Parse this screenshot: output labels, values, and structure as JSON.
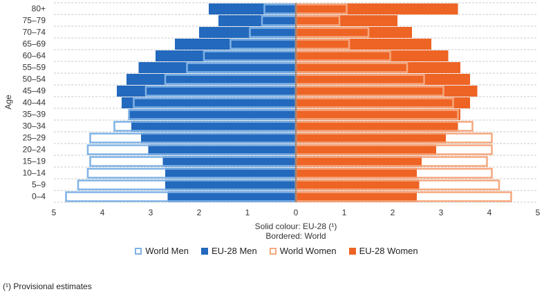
{
  "chart_data": {
    "type": "bar",
    "orientation": "horizontal",
    "layout": "population-pyramid",
    "categories": [
      "0–4",
      "5–9",
      "10–14",
      "15–19",
      "20–24",
      "25–29",
      "30–34",
      "35–39",
      "40–44",
      "45–49",
      "50–54",
      "55–59",
      "60–64",
      "65–69",
      "70–74",
      "75–79",
      "80+"
    ],
    "series": [
      {
        "name": "World Men",
        "side": "left",
        "style": "bordered",
        "color": "#7fb2e5",
        "values": [
          4.75,
          4.5,
          4.3,
          4.25,
          4.3,
          4.25,
          3.75,
          3.45,
          3.35,
          3.1,
          2.7,
          2.25,
          1.9,
          1.35,
          0.95,
          0.7,
          0.65
        ]
      },
      {
        "name": "EU-28 Men",
        "side": "left",
        "style": "solid",
        "color": "#2369bd",
        "values": [
          2.65,
          2.7,
          2.7,
          2.75,
          3.05,
          3.2,
          3.4,
          3.45,
          3.6,
          3.7,
          3.5,
          3.25,
          2.9,
          2.5,
          2.0,
          1.6,
          1.8
        ]
      },
      {
        "name": "World Women",
        "side": "right",
        "style": "bordered",
        "color": "#f5a77e",
        "values": [
          4.45,
          4.2,
          4.05,
          3.95,
          4.05,
          4.05,
          3.65,
          3.35,
          3.25,
          3.05,
          2.65,
          2.3,
          1.95,
          1.1,
          1.5,
          0.9,
          1.05
        ]
      },
      {
        "name": "EU-28 Women",
        "side": "right",
        "style": "solid",
        "color": "#ee6425",
        "values": [
          2.5,
          2.55,
          2.5,
          2.6,
          2.9,
          3.1,
          3.35,
          3.4,
          3.6,
          3.75,
          3.6,
          3.4,
          3.15,
          2.8,
          2.4,
          2.1,
          3.35
        ]
      }
    ],
    "x_ticks": [
      "5",
      "4",
      "3",
      "2",
      "1",
      "0",
      "1",
      "2",
      "3",
      "4",
      "5"
    ],
    "xlim": [
      -5,
      5
    ],
    "ylabel": "Age",
    "xlabel_line1": "Solid colour: EU-28 (¹)",
    "xlabel_line2": "Bordered: World",
    "grid": "horizontal-dashed",
    "legend_position": "bottom"
  },
  "footnote": "(¹) Provisional estimates"
}
